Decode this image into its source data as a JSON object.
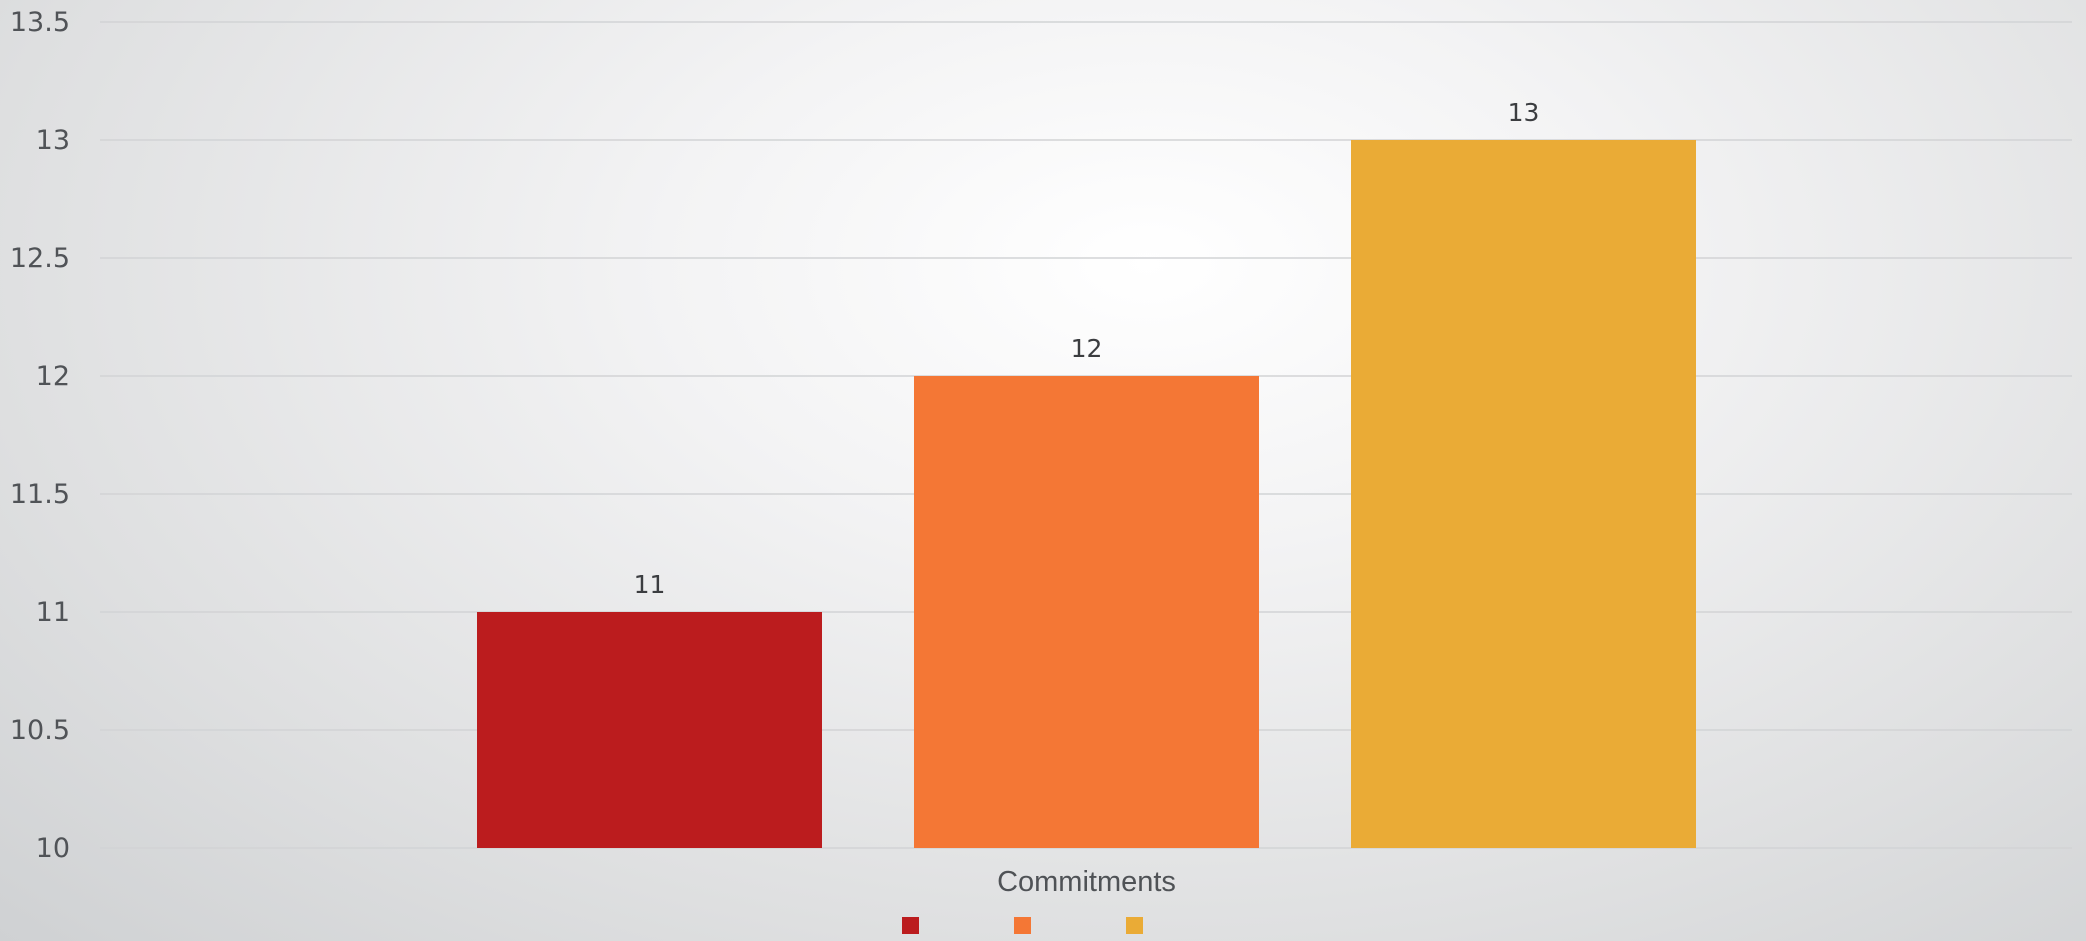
{
  "chart_data": {
    "type": "bar",
    "title": "",
    "xlabel": "",
    "ylabel": "",
    "categories": [
      "Commitments"
    ],
    "series": [
      {
        "value": 11,
        "color": "#bb1c1e"
      },
      {
        "value": 12,
        "color": "#f47735"
      },
      {
        "value": 13,
        "color": "#eaab36"
      }
    ],
    "ylim": [
      10,
      13.5
    ],
    "yticks": [
      "10",
      "10.5",
      "11",
      "11.5",
      "12",
      "12.5",
      "13",
      "13.5"
    ],
    "data_labels": [
      "11",
      "12",
      "13"
    ],
    "grid": true,
    "legend_position": "bottom"
  }
}
